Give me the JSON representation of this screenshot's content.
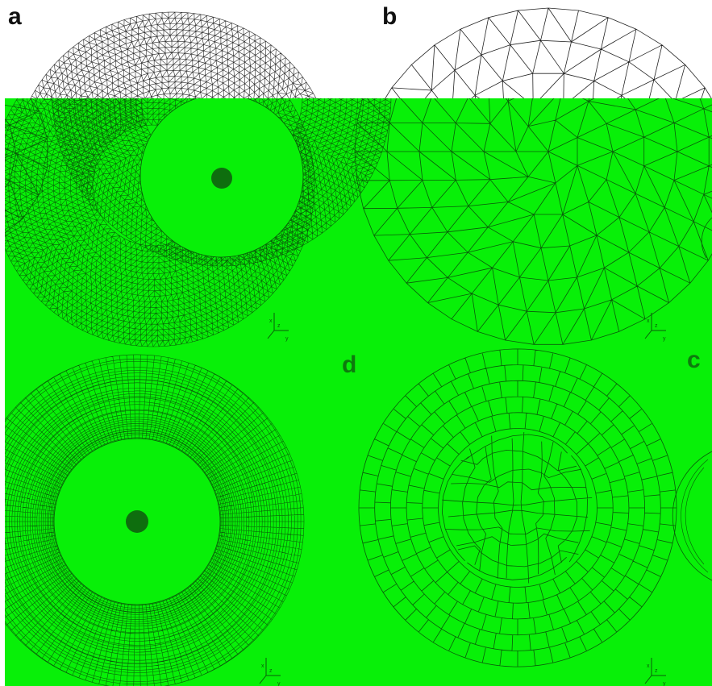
{
  "figure": {
    "panels": [
      {
        "id": "a",
        "label": "a",
        "element_type": "triangular",
        "has_inner_hole": true
      },
      {
        "id": "b",
        "label": "b",
        "element_type": "triangular",
        "has_inner_hole": false
      },
      {
        "id": "c",
        "label": "c",
        "element_type": "quadrilateral",
        "has_inner_hole": false
      },
      {
        "id": "d",
        "label": "d",
        "element_type": "quadrilateral",
        "has_inner_hole": true
      }
    ],
    "axis_triad": {
      "axis_1": "x",
      "axis_2": "y",
      "axis_3": "z"
    },
    "colors": {
      "overlay_green": "#08f008",
      "mesh_line_green": "#0a5a0a",
      "mesh_line_black": "#222222",
      "label_dark": "#111111",
      "label_green": "#0e7a0e",
      "hole_fill": "#0e6e0e",
      "background": "#ffffff"
    }
  }
}
